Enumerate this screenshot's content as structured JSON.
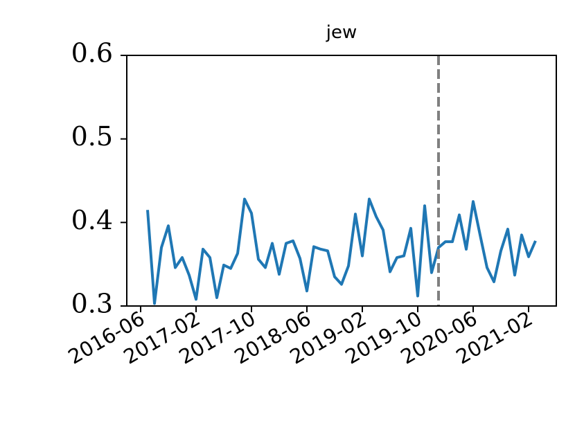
{
  "chart_data": {
    "type": "line",
    "title": "jew",
    "x": [
      "2016-07",
      "2016-08",
      "2016-09",
      "2016-10",
      "2016-11",
      "2016-12",
      "2017-01",
      "2017-02",
      "2017-03",
      "2017-04",
      "2017-05",
      "2017-06",
      "2017-07",
      "2017-08",
      "2017-09",
      "2017-10",
      "2017-11",
      "2017-12",
      "2018-01",
      "2018-02",
      "2018-03",
      "2018-04",
      "2018-05",
      "2018-06",
      "2018-07",
      "2018-08",
      "2018-09",
      "2018-10",
      "2018-11",
      "2018-12",
      "2019-01",
      "2019-02",
      "2019-03",
      "2019-04",
      "2019-05",
      "2019-06",
      "2019-07",
      "2019-08",
      "2019-09",
      "2019-10",
      "2019-11",
      "2019-12",
      "2020-01",
      "2020-02",
      "2020-03",
      "2020-04",
      "2020-05",
      "2020-06",
      "2020-07",
      "2020-08",
      "2020-09",
      "2020-10",
      "2020-11",
      "2020-12",
      "2021-01",
      "2021-02",
      "2021-03"
    ],
    "series": [
      {
        "color": "#1f77b4",
        "values": [
          0.415,
          0.303,
          0.37,
          0.396,
          0.346,
          0.358,
          0.337,
          0.308,
          0.368,
          0.358,
          0.31,
          0.349,
          0.345,
          0.363,
          0.428,
          0.411,
          0.356,
          0.346,
          0.375,
          0.338,
          0.375,
          0.378,
          0.357,
          0.318,
          0.371,
          0.368,
          0.366,
          0.335,
          0.326,
          0.348,
          0.41,
          0.36,
          0.428,
          0.407,
          0.391,
          0.341,
          0.358,
          0.36,
          0.393,
          0.312,
          0.42,
          0.34,
          0.37,
          0.377,
          0.377,
          0.409,
          0.368,
          0.425,
          0.385,
          0.346,
          0.329,
          0.366,
          0.392,
          0.337,
          0.385,
          0.359,
          0.378
        ]
      }
    ],
    "xlim": [
      "2016-04",
      "2021-06"
    ],
    "xticks": [
      "2016-06",
      "2017-02",
      "2017-10",
      "2018-06",
      "2019-02",
      "2019-10",
      "2020-06",
      "2021-02"
    ],
    "ylim": [
      0.3,
      0.6
    ],
    "yticks": [
      {
        "value": 0.3,
        "label": "0.3"
      },
      {
        "value": 0.4,
        "label": "0.4"
      },
      {
        "value": 0.5,
        "label": "0.5"
      },
      {
        "value": 0.6,
        "label": "0.6"
      }
    ],
    "vline": {
      "x": "2020-01",
      "color": "#808080",
      "style": "dashed"
    }
  }
}
